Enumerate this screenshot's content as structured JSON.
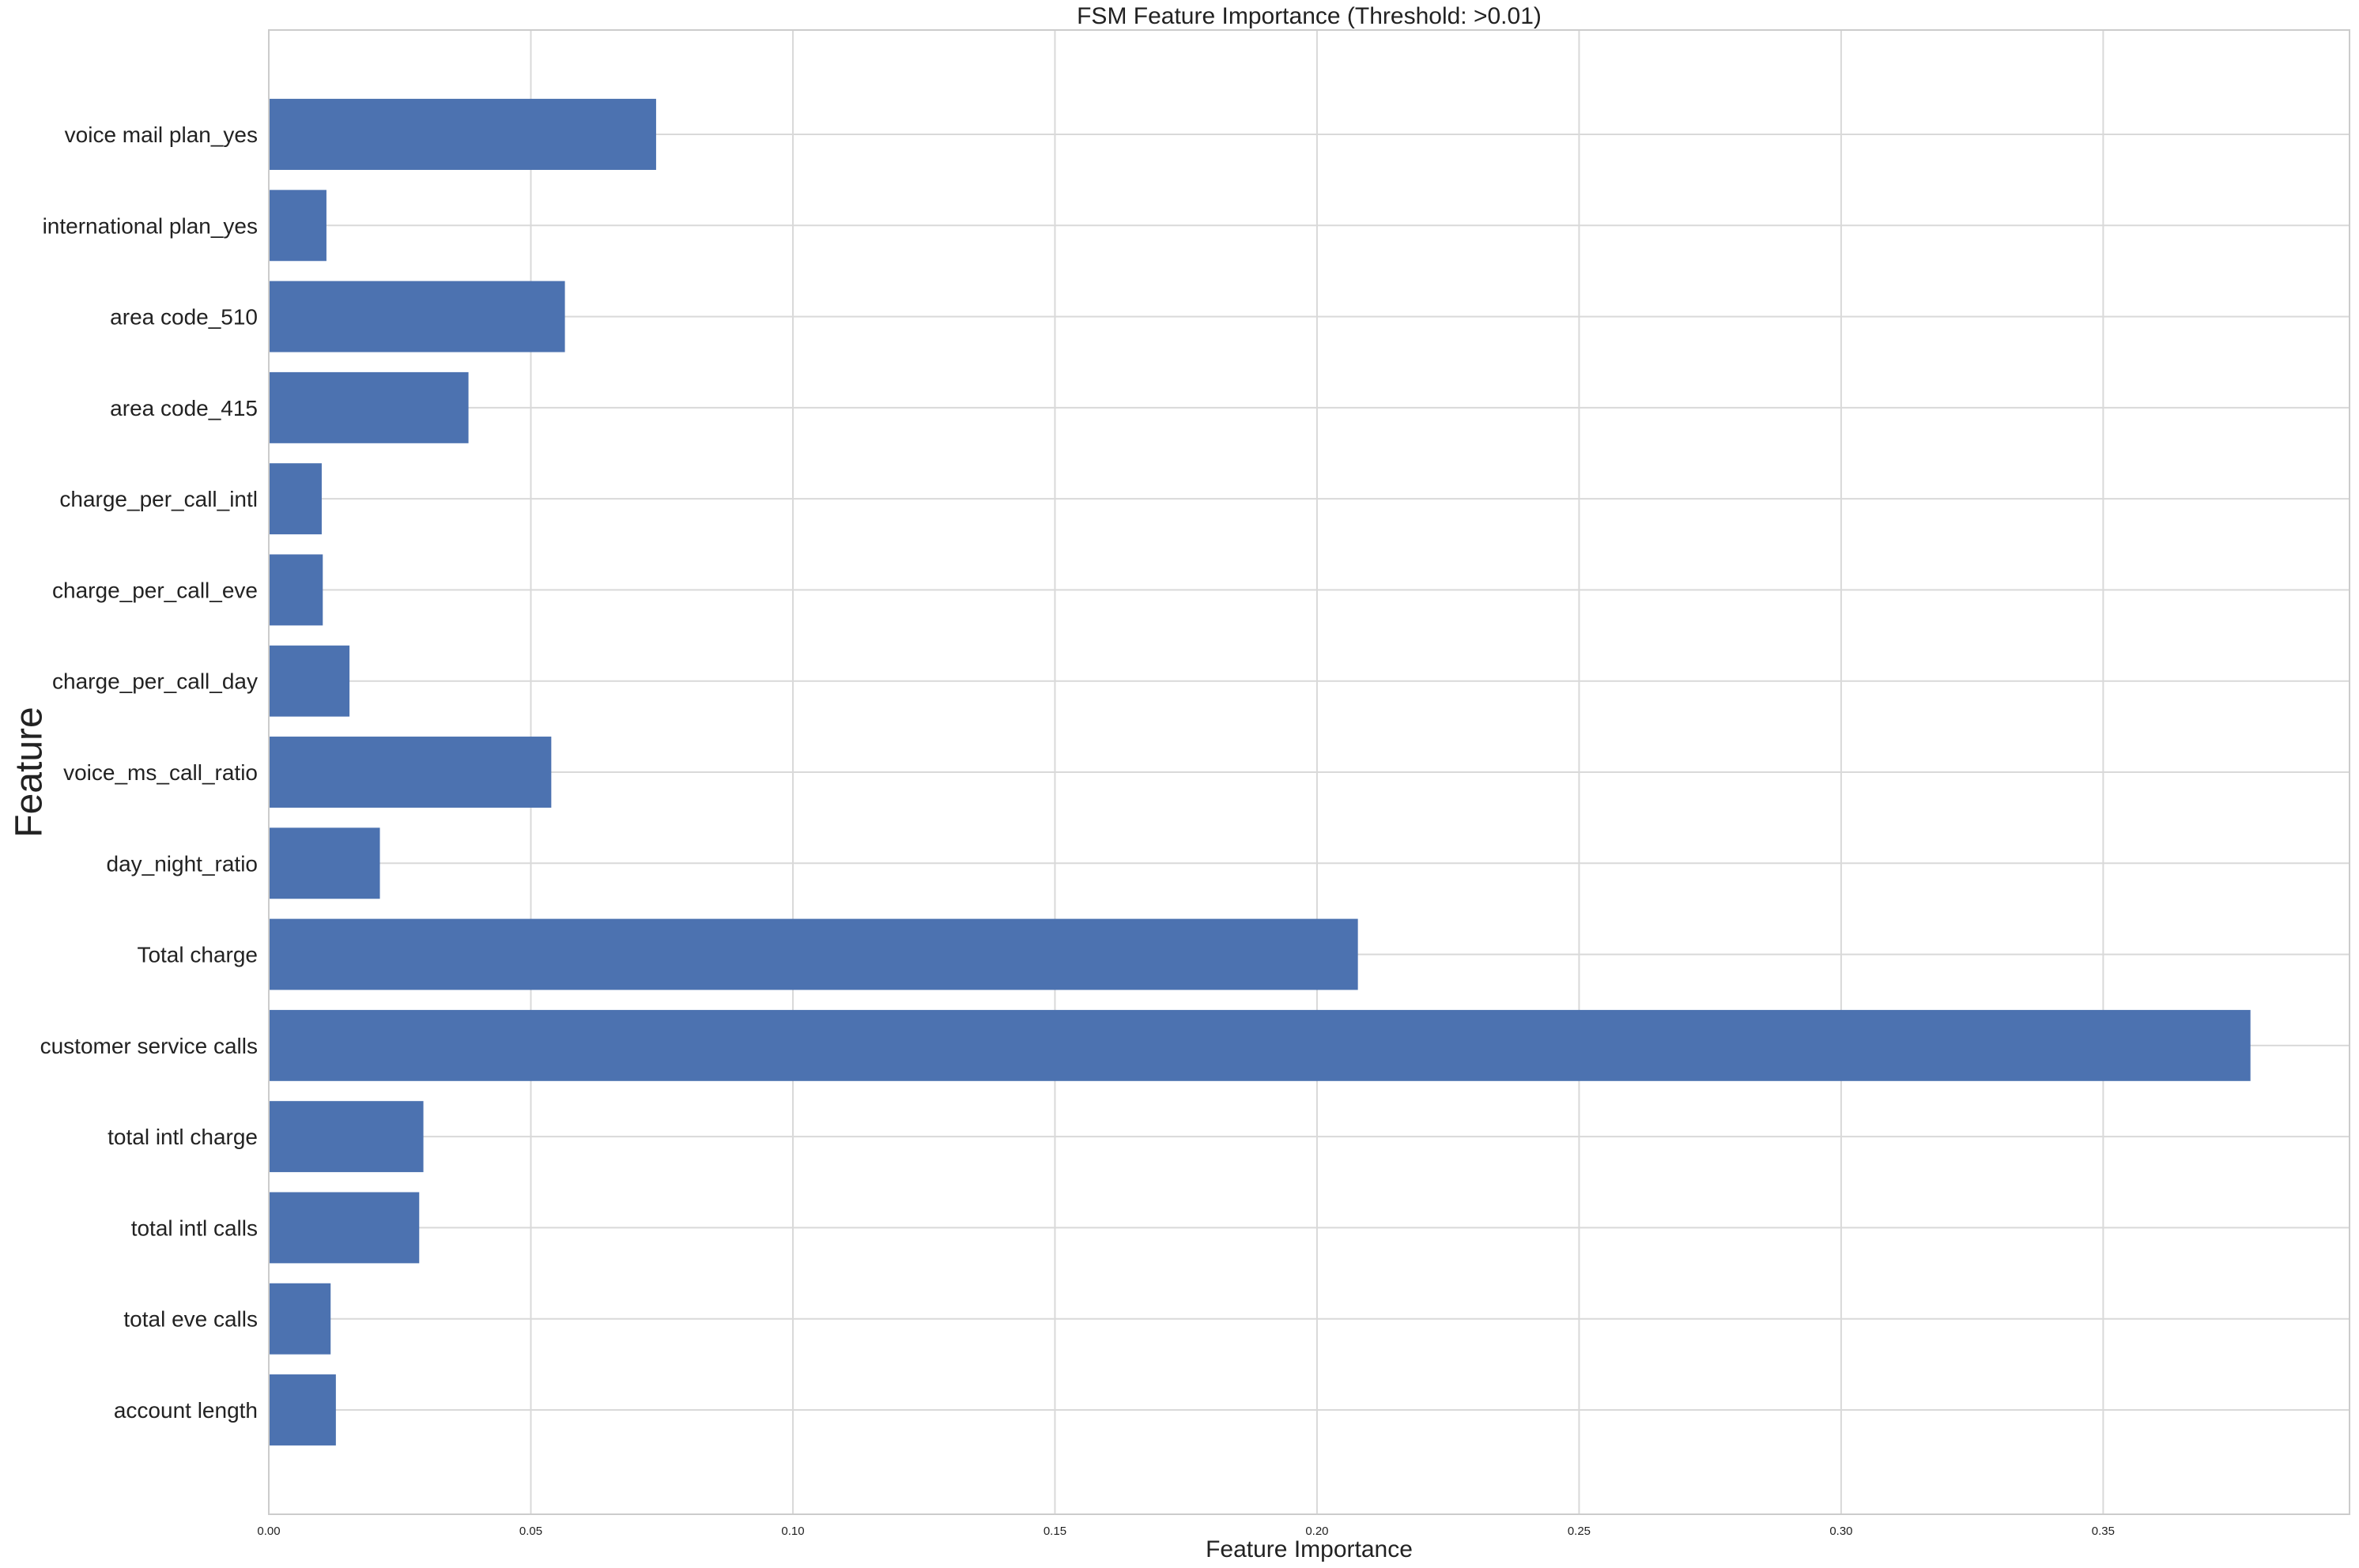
{
  "chart_data": {
    "type": "bar",
    "orientation": "horizontal",
    "title": "FSM Feature Importance (Threshold: >0.01)",
    "xlabel": "Feature Importance",
    "ylabel": "Feature",
    "xlim": [
      0,
      0.397
    ],
    "xticks": [
      "0.00",
      "0.05",
      "0.10",
      "0.15",
      "0.20",
      "0.25",
      "0.30",
      "0.35"
    ],
    "grid": true,
    "bar_color": "#4c72b0",
    "categories": [
      "account length",
      "total eve calls",
      "total intl calls",
      "total intl charge",
      "customer service calls",
      "Total charge",
      "day_night_ratio",
      "voice_ms_call_ratio",
      "charge_per_call_day",
      "charge_per_call_eve",
      "charge_per_call_intl",
      "area code_415",
      "area code_510",
      "international plan_yes",
      "voice mail plan_yes"
    ],
    "values": [
      0.0128,
      0.0118,
      0.0287,
      0.0295,
      0.3781,
      0.2078,
      0.0212,
      0.0539,
      0.0154,
      0.0103,
      0.0101,
      0.0381,
      0.0565,
      0.011,
      0.0739
    ]
  }
}
